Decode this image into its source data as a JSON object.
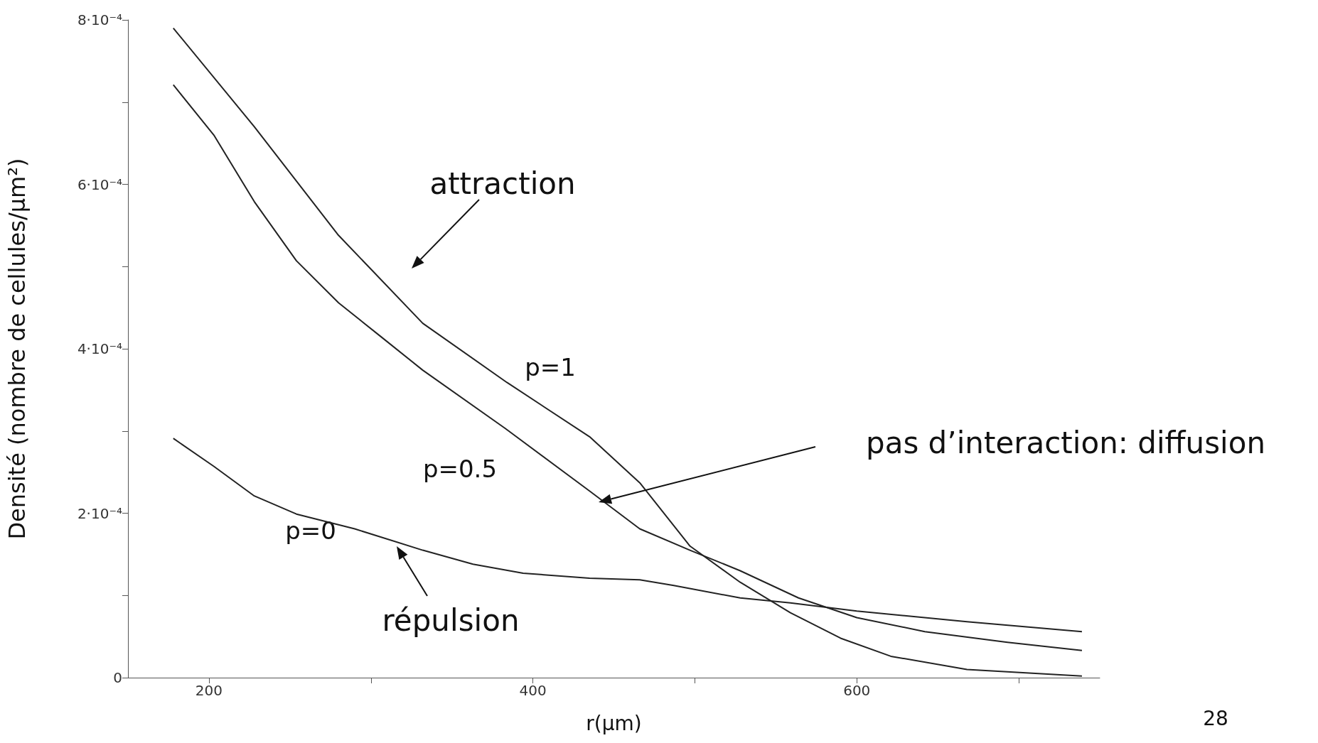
{
  "chart_data": {
    "type": "line",
    "xlabel": "r(μm)",
    "ylabel": "Densité (nombre de cellules/μm²)",
    "xlim": [
      150,
      750
    ],
    "xticks": [
      200,
      {
        "value": 300,
        "label": null
      },
      400,
      {
        "value": 500,
        "label": null
      },
      600,
      {
        "value": 700,
        "label": null
      }
    ],
    "ylim": [
      0,
      0.0008
    ],
    "yticks": [
      0,
      {
        "value": 0.0001,
        "label": null
      },
      {
        "value": 0.0002,
        "label": "2·10⁻⁴"
      },
      {
        "value": 0.0003,
        "label": null
      },
      {
        "value": 0.0004,
        "label": "4·10⁻⁴"
      },
      {
        "value": 0.0005,
        "label": null
      },
      {
        "value": 0.0006,
        "label": "6·10⁻⁴"
      },
      {
        "value": 0.0007,
        "label": null
      },
      {
        "value": 0.0008,
        "label": "8·10⁻⁴"
      }
    ],
    "grid": false,
    "legend": false,
    "marker": "none",
    "line_style": "solid",
    "series": [
      {
        "name": "p=1",
        "color": "#222222",
        "x": [
          178,
          228,
          280,
          332,
          384,
          435,
          466,
          497,
          528,
          559,
          590,
          621,
          668,
          739
        ],
        "values": [
          0.00079,
          0.00067,
          0.000538,
          0.000431,
          0.000359,
          0.000293,
          0.000237,
          0.00016,
          0.000116,
          7.9e-05,
          4.8e-05,
          2.6e-05,
          1e-05,
          2e-06
        ]
      },
      {
        "name": "p=0.5",
        "color": "#222222",
        "x": [
          178,
          203,
          228,
          254,
          280,
          306,
          332,
          383,
          435,
          466,
          497,
          528,
          564,
          600,
          642,
          693,
          739
        ],
        "values": [
          0.000721,
          0.00066,
          0.000579,
          0.000507,
          0.000456,
          0.000415,
          0.000374,
          0.000303,
          0.000227,
          0.000181,
          0.000155,
          0.00013,
          9.7e-05,
          7.3e-05,
          5.6e-05,
          4.3e-05,
          3.3e-05
        ]
      },
      {
        "name": "p=0",
        "color": "#222222",
        "x": [
          178,
          203,
          228,
          254,
          290,
          332,
          363,
          394,
          435,
          466,
          487,
          528,
          559,
          600,
          668,
          739
        ],
        "values": [
          0.000291,
          0.000257,
          0.000221,
          0.000199,
          0.000181,
          0.000155,
          0.000138,
          0.000127,
          0.000121,
          0.000119,
          0.000112,
          9.7e-05,
          9.1e-05,
          8.1e-05,
          6.8e-05,
          5.6e-05
        ]
      }
    ],
    "annotations": [
      "attraction",
      "pas d’interaction: diffusion",
      "répulsion",
      "28"
    ]
  }
}
